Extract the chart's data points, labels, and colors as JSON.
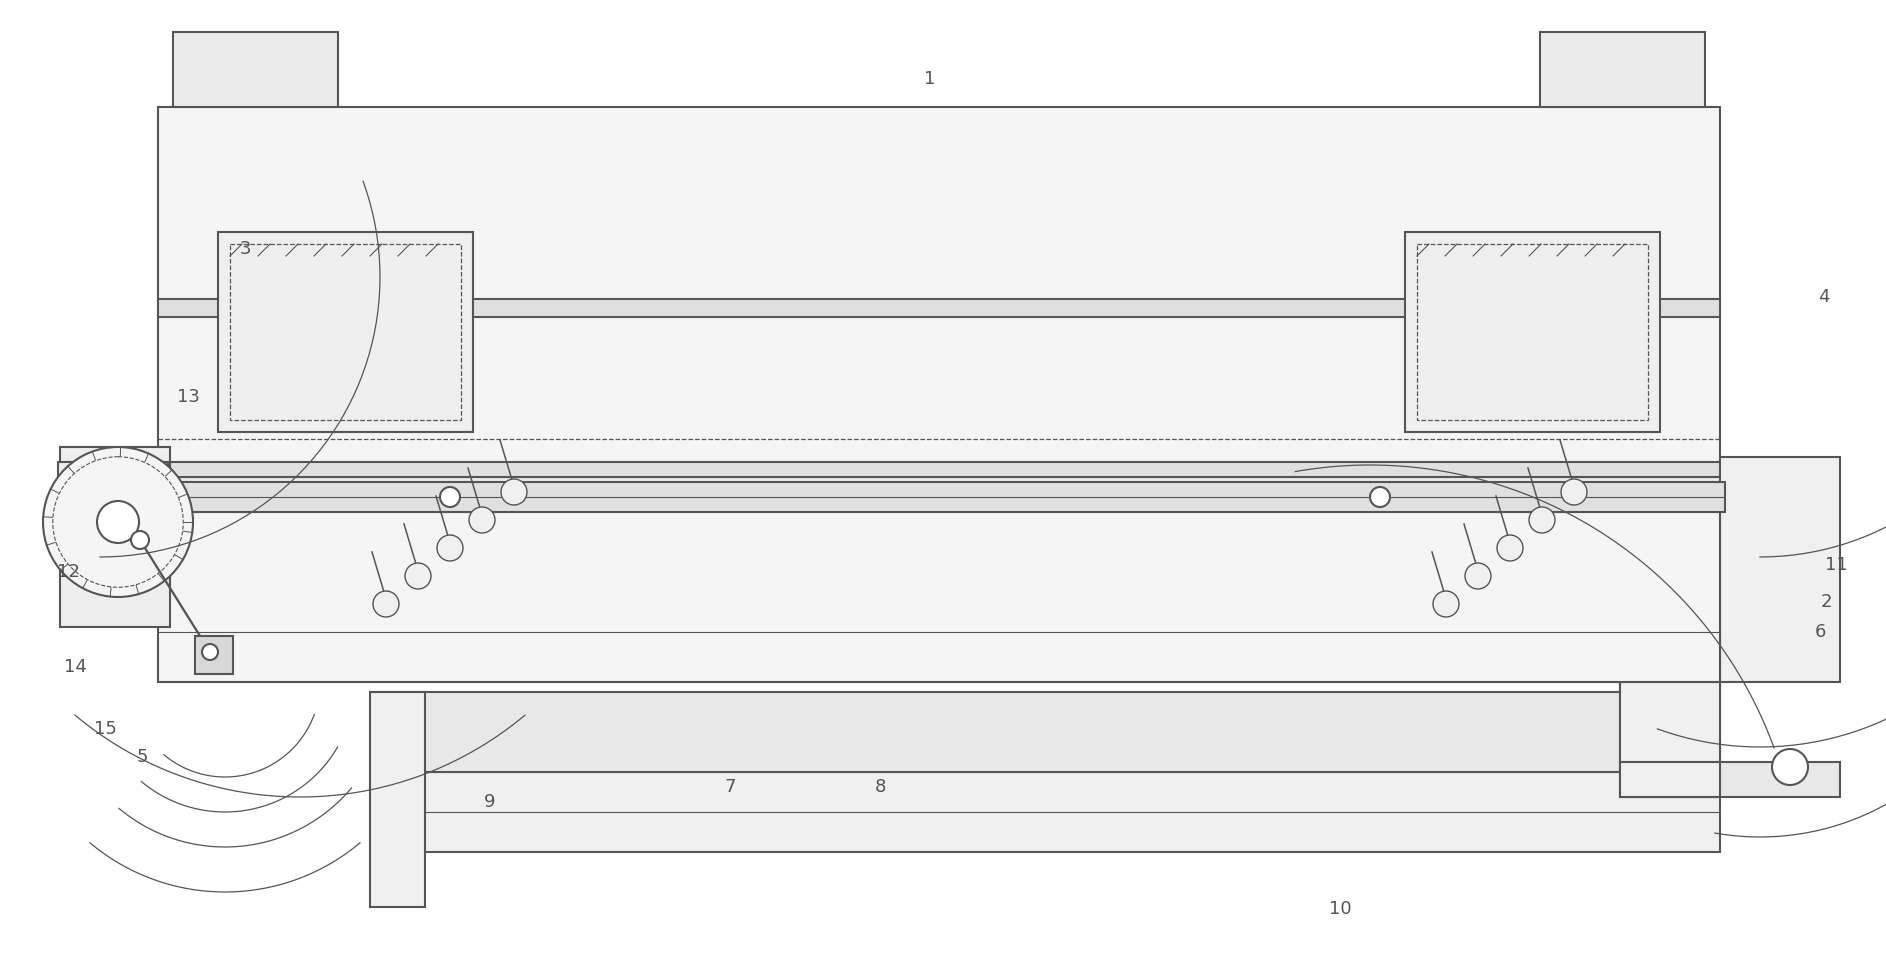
{
  "bg": "#ffffff",
  "lc": "#555555",
  "lw": 1.5,
  "fw": 18.86,
  "fh": 9.77,
  "label_fs": 13,
  "arrow_lw": 0.9
}
